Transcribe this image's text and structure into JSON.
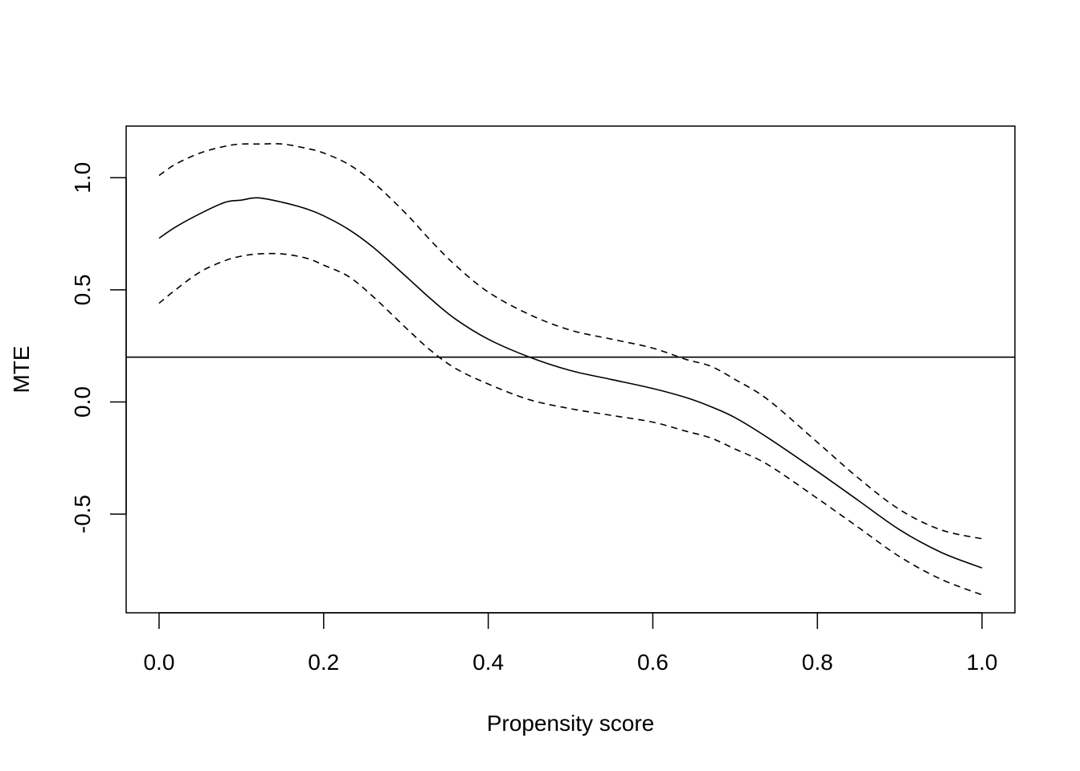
{
  "chart_data": {
    "type": "line",
    "title": "",
    "xlabel": "Propensity score",
    "ylabel": "MTE",
    "xlim": [
      -0.04,
      1.04
    ],
    "ylim": [
      -0.94,
      1.23
    ],
    "xticks": [
      0.0,
      0.2,
      0.4,
      0.6,
      0.8,
      1.0
    ],
    "xtick_labels": [
      "0.0",
      "0.2",
      "0.4",
      "0.6",
      "0.8",
      "1.0"
    ],
    "yticks": [
      -0.5,
      0.0,
      0.5,
      1.0
    ],
    "ytick_labels": [
      "-0.5",
      "0.0",
      "0.5",
      "1.0"
    ],
    "hline": 0.2,
    "grid": false,
    "legend": "none",
    "x": [
      0.0,
      0.02,
      0.05,
      0.08,
      0.1,
      0.12,
      0.15,
      0.18,
      0.2,
      0.23,
      0.26,
      0.3,
      0.33,
      0.36,
      0.4,
      0.45,
      0.5,
      0.55,
      0.6,
      0.64,
      0.67,
      0.7,
      0.74,
      0.8,
      0.85,
      0.9,
      0.95,
      1.0
    ],
    "series": [
      {
        "style": "solid",
        "values": [
          0.73,
          0.78,
          0.84,
          0.89,
          0.9,
          0.91,
          0.89,
          0.86,
          0.83,
          0.77,
          0.69,
          0.56,
          0.46,
          0.37,
          0.28,
          0.2,
          0.14,
          0.1,
          0.06,
          0.02,
          -0.02,
          -0.07,
          -0.16,
          -0.31,
          -0.44,
          -0.57,
          -0.67,
          -0.74
        ]
      },
      {
        "style": "dashed",
        "values": [
          1.01,
          1.06,
          1.11,
          1.14,
          1.15,
          1.15,
          1.15,
          1.13,
          1.11,
          1.06,
          0.98,
          0.84,
          0.72,
          0.61,
          0.49,
          0.39,
          0.32,
          0.28,
          0.24,
          0.19,
          0.16,
          0.1,
          0.01,
          -0.18,
          -0.34,
          -0.48,
          -0.57,
          -0.61
        ]
      },
      {
        "style": "dashed",
        "values": [
          0.44,
          0.5,
          0.58,
          0.63,
          0.65,
          0.66,
          0.66,
          0.64,
          0.61,
          0.56,
          0.47,
          0.33,
          0.23,
          0.15,
          0.08,
          0.01,
          -0.03,
          -0.06,
          -0.09,
          -0.13,
          -0.16,
          -0.21,
          -0.28,
          -0.43,
          -0.56,
          -0.69,
          -0.79,
          -0.86
        ]
      }
    ]
  }
}
